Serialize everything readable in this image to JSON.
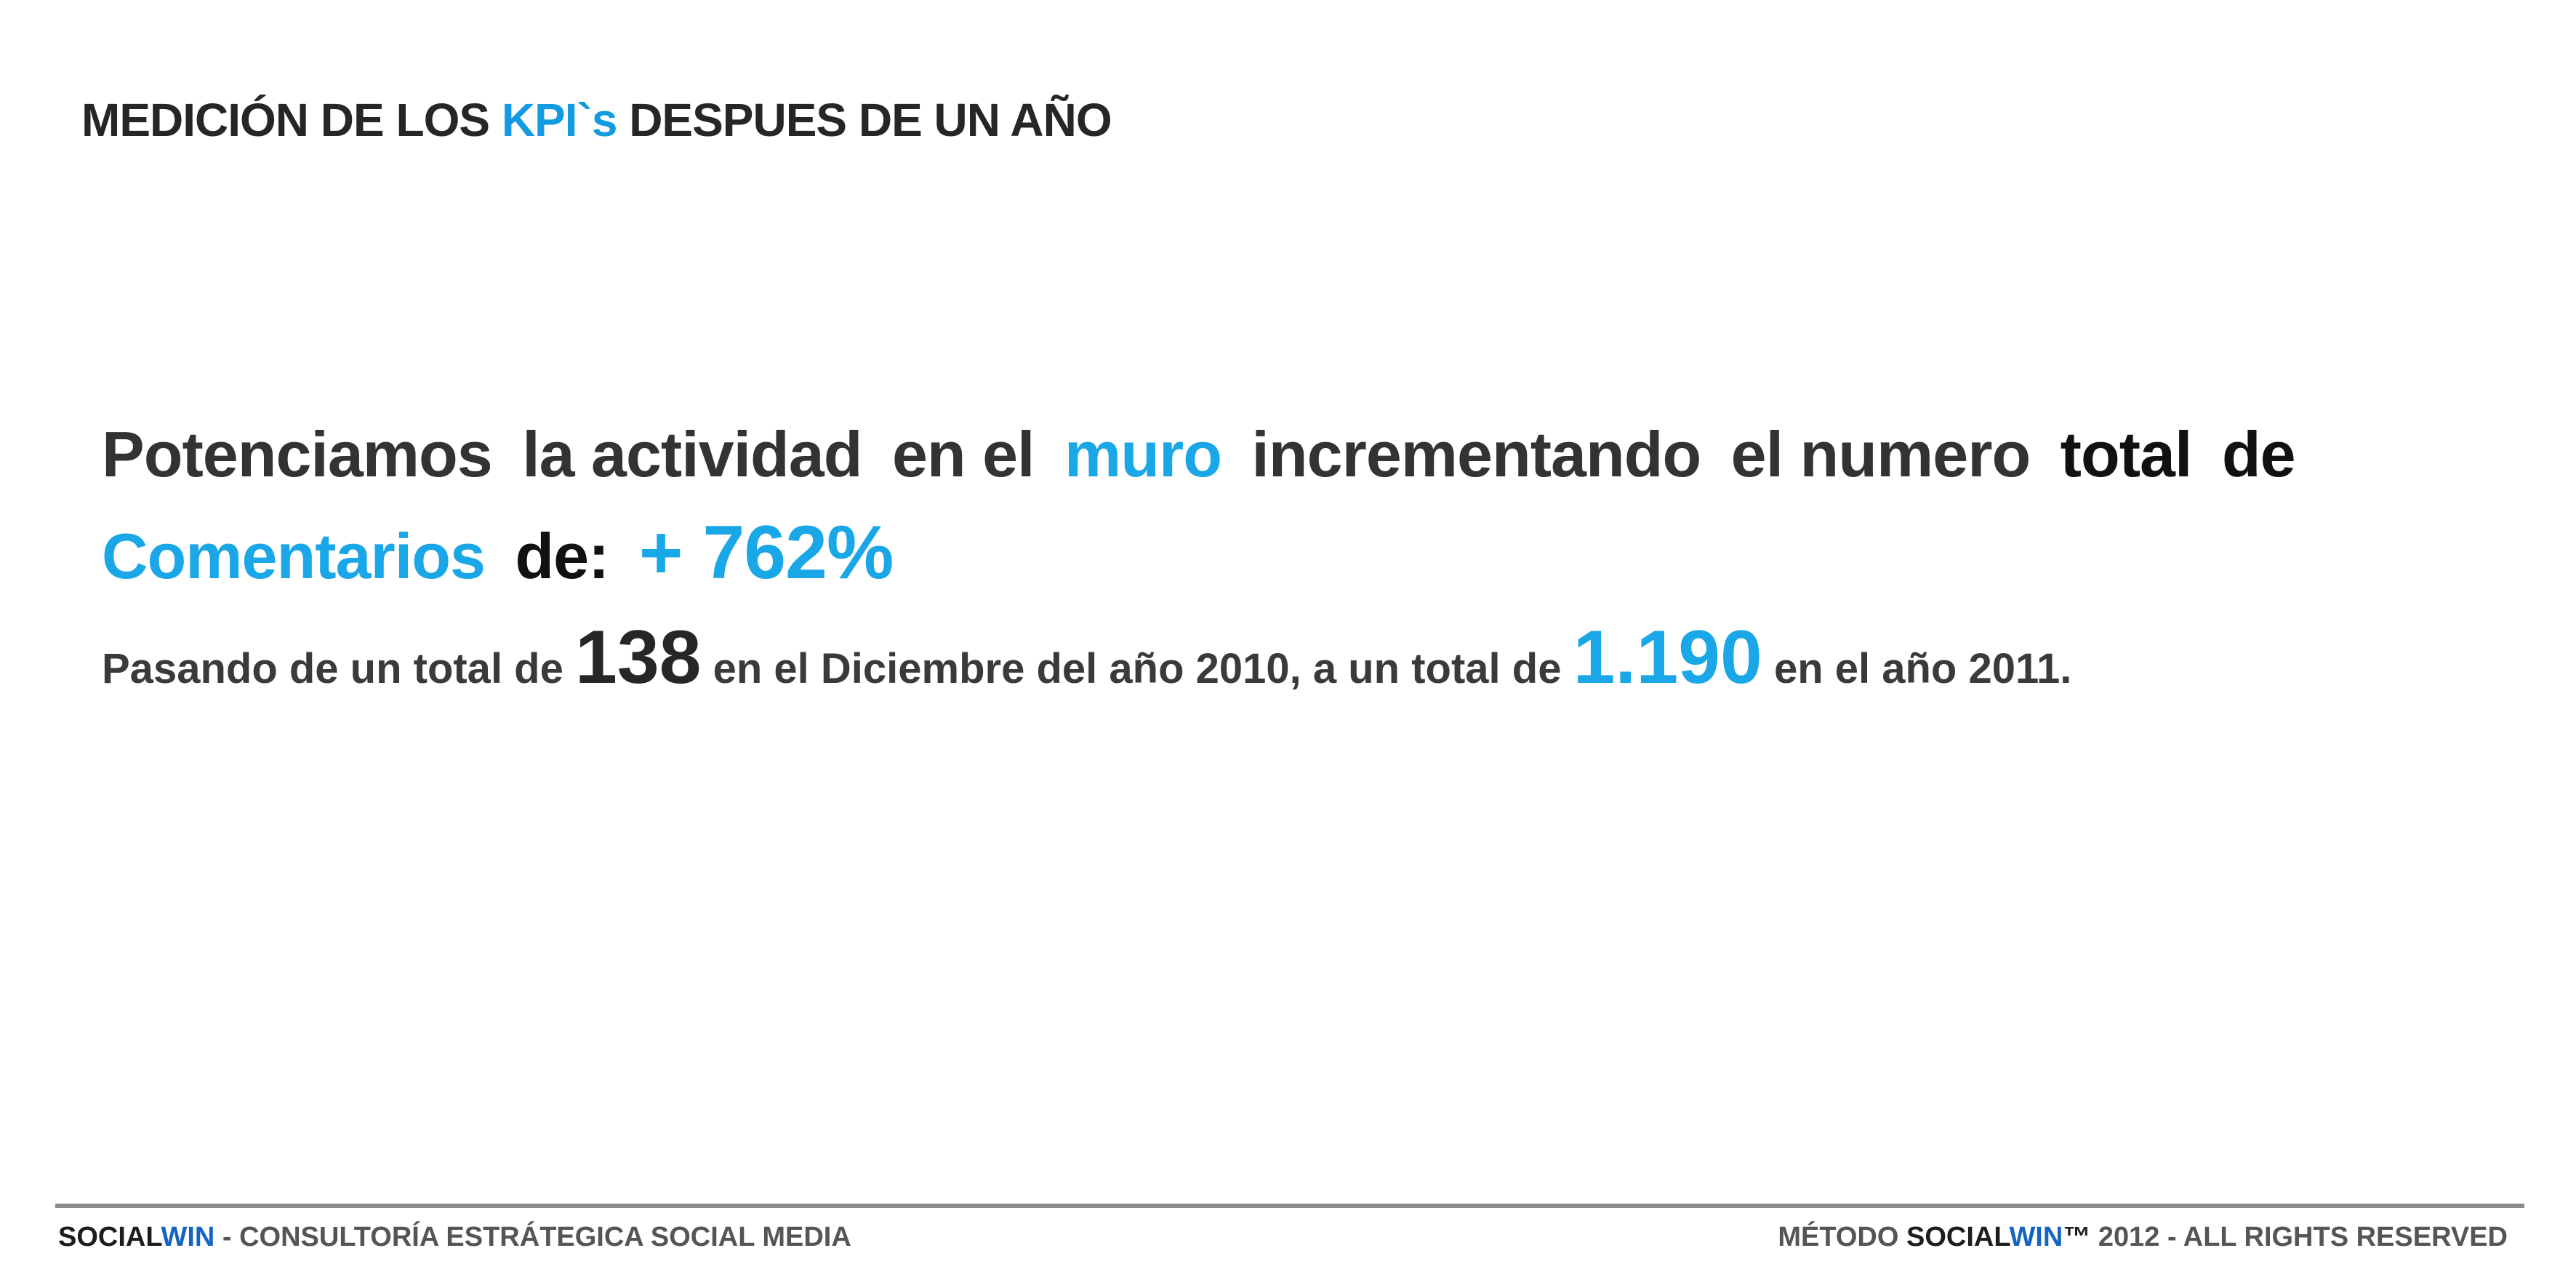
{
  "title": {
    "part1": "MEDICIÓN DE LOS ",
    "accent": "KPI`s",
    "part2": " DESPUES DE UN AÑO"
  },
  "headline": {
    "w1": "Potenciamos",
    "w2": "la actividad",
    "w3": "en el",
    "accent1": "muro",
    "w4": "incrementando",
    "w5": "el numero",
    "w6": "total",
    "w7": "de",
    "accent2": "Comentarios",
    "w8": "de:",
    "percentage": "+ 762%"
  },
  "detail": {
    "p1": "Pasando de un total de ",
    "value_before": "138",
    "p2": " en el Diciembre del año 2010, a un total de ",
    "value_after": "1.190",
    "p3": " en el año 2011."
  },
  "footer": {
    "left_brand": "SOCIAL",
    "left_win": "WIN",
    "left_rest": " - CONSULTORÍA ESTRÁTEGICA SOCIAL MEDIA",
    "right_pre": "MÉTODO ",
    "right_brand": "SOCIAL",
    "right_win": "WIN",
    "right_tm": "™",
    "right_rest": " 2012 - ALL RIGHTS RESERVED"
  },
  "colors": {
    "accent": "#1aa7e8",
    "brand_win": "#1565c0",
    "rule": "#8c8c8c"
  }
}
